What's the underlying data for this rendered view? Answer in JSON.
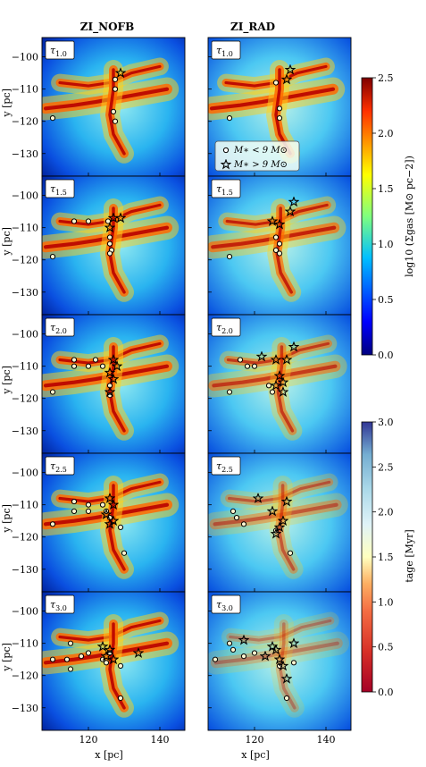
{
  "columns": [
    "ZI_NOFB",
    "ZI_RAD"
  ],
  "panel_labels": [
    "τ1.0",
    "τ1.5",
    "τ2.0",
    "τ2.5",
    "τ3.0"
  ],
  "panel_label_parts": [
    {
      "base": "τ",
      "sub": "1.0"
    },
    {
      "base": "τ",
      "sub": "1.5"
    },
    {
      "base": "τ",
      "sub": "2.0"
    },
    {
      "base": "τ",
      "sub": "2.5"
    },
    {
      "base": "τ",
      "sub": "3.0"
    }
  ],
  "xlabel": "x [pc]",
  "ylabel": "y [pc]",
  "xticks": [
    "120",
    "140"
  ],
  "yticks": [
    "−100",
    "−110",
    "−120",
    "−130"
  ],
  "legend": {
    "low_mass": "M∗ < 9 M⊙",
    "high_mass": "M∗ > 9 M⊙"
  },
  "colorbar_gas": {
    "label": "log10 (Σgas [M⊙ pc−2])",
    "ticks": [
      "0.0",
      "0.5",
      "1.0",
      "1.5",
      "2.0",
      "2.5"
    ],
    "range": [
      0.0,
      2.5
    ],
    "colormap": "jet"
  },
  "colorbar_age": {
    "label": "tage [Myr]",
    "ticks": [
      "0.0",
      "0.5",
      "1.0",
      "1.5",
      "2.0",
      "2.5",
      "3.0"
    ],
    "range": [
      0.0,
      3.0
    ],
    "colormap": "RdYlBu"
  },
  "chart_data": {
    "type": "scatter",
    "title": "",
    "xlabel": "x [pc]",
    "ylabel": "y [pc]",
    "xlim": [
      107,
      147
    ],
    "ylim": [
      -137,
      -94
    ],
    "columns": [
      "ZI_NOFB",
      "ZI_RAD"
    ],
    "panels": [
      {
        "row": "τ1.0",
        "col": "ZI_NOFB",
        "stars_low": [
          [
            110,
            -119
          ],
          [
            127.5,
            -107
          ],
          [
            127.5,
            -110
          ],
          [
            127,
            -117
          ],
          [
            127.5,
            -120
          ]
        ],
        "stars_high": [
          [
            129,
            -105
          ]
        ]
      },
      {
        "row": "τ1.0",
        "col": "ZI_RAD",
        "stars_low": [
          [
            113,
            -119
          ],
          [
            126,
            -108
          ],
          [
            127,
            -116
          ],
          [
            127,
            -119
          ]
        ],
        "stars_high": [
          [
            130,
            -104
          ],
          [
            129,
            -107
          ]
        ]
      },
      {
        "row": "τ1.5",
        "col": "ZI_NOFB",
        "stars_low": [
          [
            110,
            -119
          ],
          [
            116,
            -108
          ],
          [
            120,
            -108
          ],
          [
            125.5,
            -108
          ],
          [
            126,
            -113
          ],
          [
            126,
            -115
          ],
          [
            126.5,
            -117
          ],
          [
            126,
            -118
          ]
        ],
        "stars_high": [
          [
            127,
            -107
          ],
          [
            129,
            -107
          ],
          [
            126,
            -110
          ]
        ]
      },
      {
        "row": "τ1.5",
        "col": "ZI_RAD",
        "stars_low": [
          [
            113,
            -119
          ],
          [
            126,
            -113
          ],
          [
            127,
            -115
          ],
          [
            126,
            -117
          ],
          [
            127,
            -118
          ]
        ],
        "stars_high": [
          [
            125,
            -108
          ],
          [
            127,
            -109
          ],
          [
            130,
            -105
          ],
          [
            131,
            -102
          ]
        ]
      },
      {
        "row": "τ2.0",
        "col": "ZI_NOFB",
        "stars_low": [
          [
            110,
            -118
          ],
          [
            116,
            -108
          ],
          [
            116,
            -110
          ],
          [
            120,
            -110
          ],
          [
            122,
            -108
          ],
          [
            124,
            -110
          ],
          [
            126,
            -116
          ],
          [
            126,
            -119
          ]
        ],
        "stars_high": [
          [
            127,
            -108
          ],
          [
            128,
            -110
          ],
          [
            126,
            -112
          ],
          [
            127,
            -114
          ],
          [
            126,
            -118
          ]
        ]
      },
      {
        "row": "τ2.0",
        "col": "ZI_RAD",
        "stars_low": [
          [
            113,
            -118
          ],
          [
            116,
            -108
          ],
          [
            118,
            -110
          ],
          [
            120,
            -110
          ],
          [
            124,
            -116
          ],
          [
            125,
            -118
          ]
        ],
        "stars_high": [
          [
            122,
            -107
          ],
          [
            126,
            -108
          ],
          [
            129,
            -108
          ],
          [
            131,
            -104
          ],
          [
            127,
            -113
          ],
          [
            128,
            -115
          ],
          [
            126,
            -116
          ],
          [
            128,
            -118
          ]
        ]
      },
      {
        "row": "τ2.5",
        "col": "ZI_NOFB",
        "stars_low": [
          [
            110,
            -116
          ],
          [
            116,
            -109
          ],
          [
            116,
            -112
          ],
          [
            120,
            -110
          ],
          [
            120,
            -112
          ],
          [
            124,
            -110
          ],
          [
            125,
            -112
          ],
          [
            126,
            -114
          ],
          [
            129,
            -117
          ],
          [
            130,
            -125
          ]
        ],
        "stars_high": [
          [
            126,
            -108
          ],
          [
            127,
            -110
          ],
          [
            125,
            -113
          ],
          [
            127,
            -115
          ],
          [
            126,
            -116
          ]
        ]
      },
      {
        "row": "τ2.5",
        "col": "ZI_RAD",
        "stars_low": [
          [
            114,
            -112
          ],
          [
            115,
            -114
          ],
          [
            117,
            -116
          ],
          [
            126,
            -118
          ],
          [
            130,
            -125
          ]
        ],
        "stars_high": [
          [
            121,
            -108
          ],
          [
            125,
            -112
          ],
          [
            129,
            -109
          ],
          [
            128,
            -115
          ],
          [
            127,
            -117
          ],
          [
            126,
            -119
          ]
        ]
      },
      {
        "row": "τ3.0",
        "col": "ZI_NOFB",
        "stars_low": [
          [
            110,
            -115
          ],
          [
            114,
            -115
          ],
          [
            115,
            -110
          ],
          [
            115,
            -118
          ],
          [
            118,
            -114
          ],
          [
            120,
            -113
          ],
          [
            124,
            -115
          ],
          [
            125,
            -116
          ],
          [
            126,
            -113
          ],
          [
            129,
            -117
          ],
          [
            129,
            -127
          ]
        ],
        "stars_high": [
          [
            124,
            -111
          ],
          [
            126,
            -112
          ],
          [
            125,
            -114
          ],
          [
            127,
            -115
          ],
          [
            134,
            -113
          ]
        ]
      },
      {
        "row": "τ3.0",
        "col": "ZI_RAD",
        "stars_low": [
          [
            109,
            -115
          ],
          [
            113,
            -110
          ],
          [
            114,
            -112
          ],
          [
            117,
            -114
          ],
          [
            120,
            -113
          ],
          [
            127,
            -117
          ],
          [
            129,
            -127
          ],
          [
            131,
            -116
          ]
        ],
        "stars_high": [
          [
            117,
            -109
          ],
          [
            123,
            -114
          ],
          [
            125,
            -111
          ],
          [
            127,
            -115
          ],
          [
            128,
            -117
          ],
          [
            131,
            -110
          ],
          [
            129,
            -121
          ],
          [
            126,
            -112
          ]
        ]
      }
    ]
  }
}
